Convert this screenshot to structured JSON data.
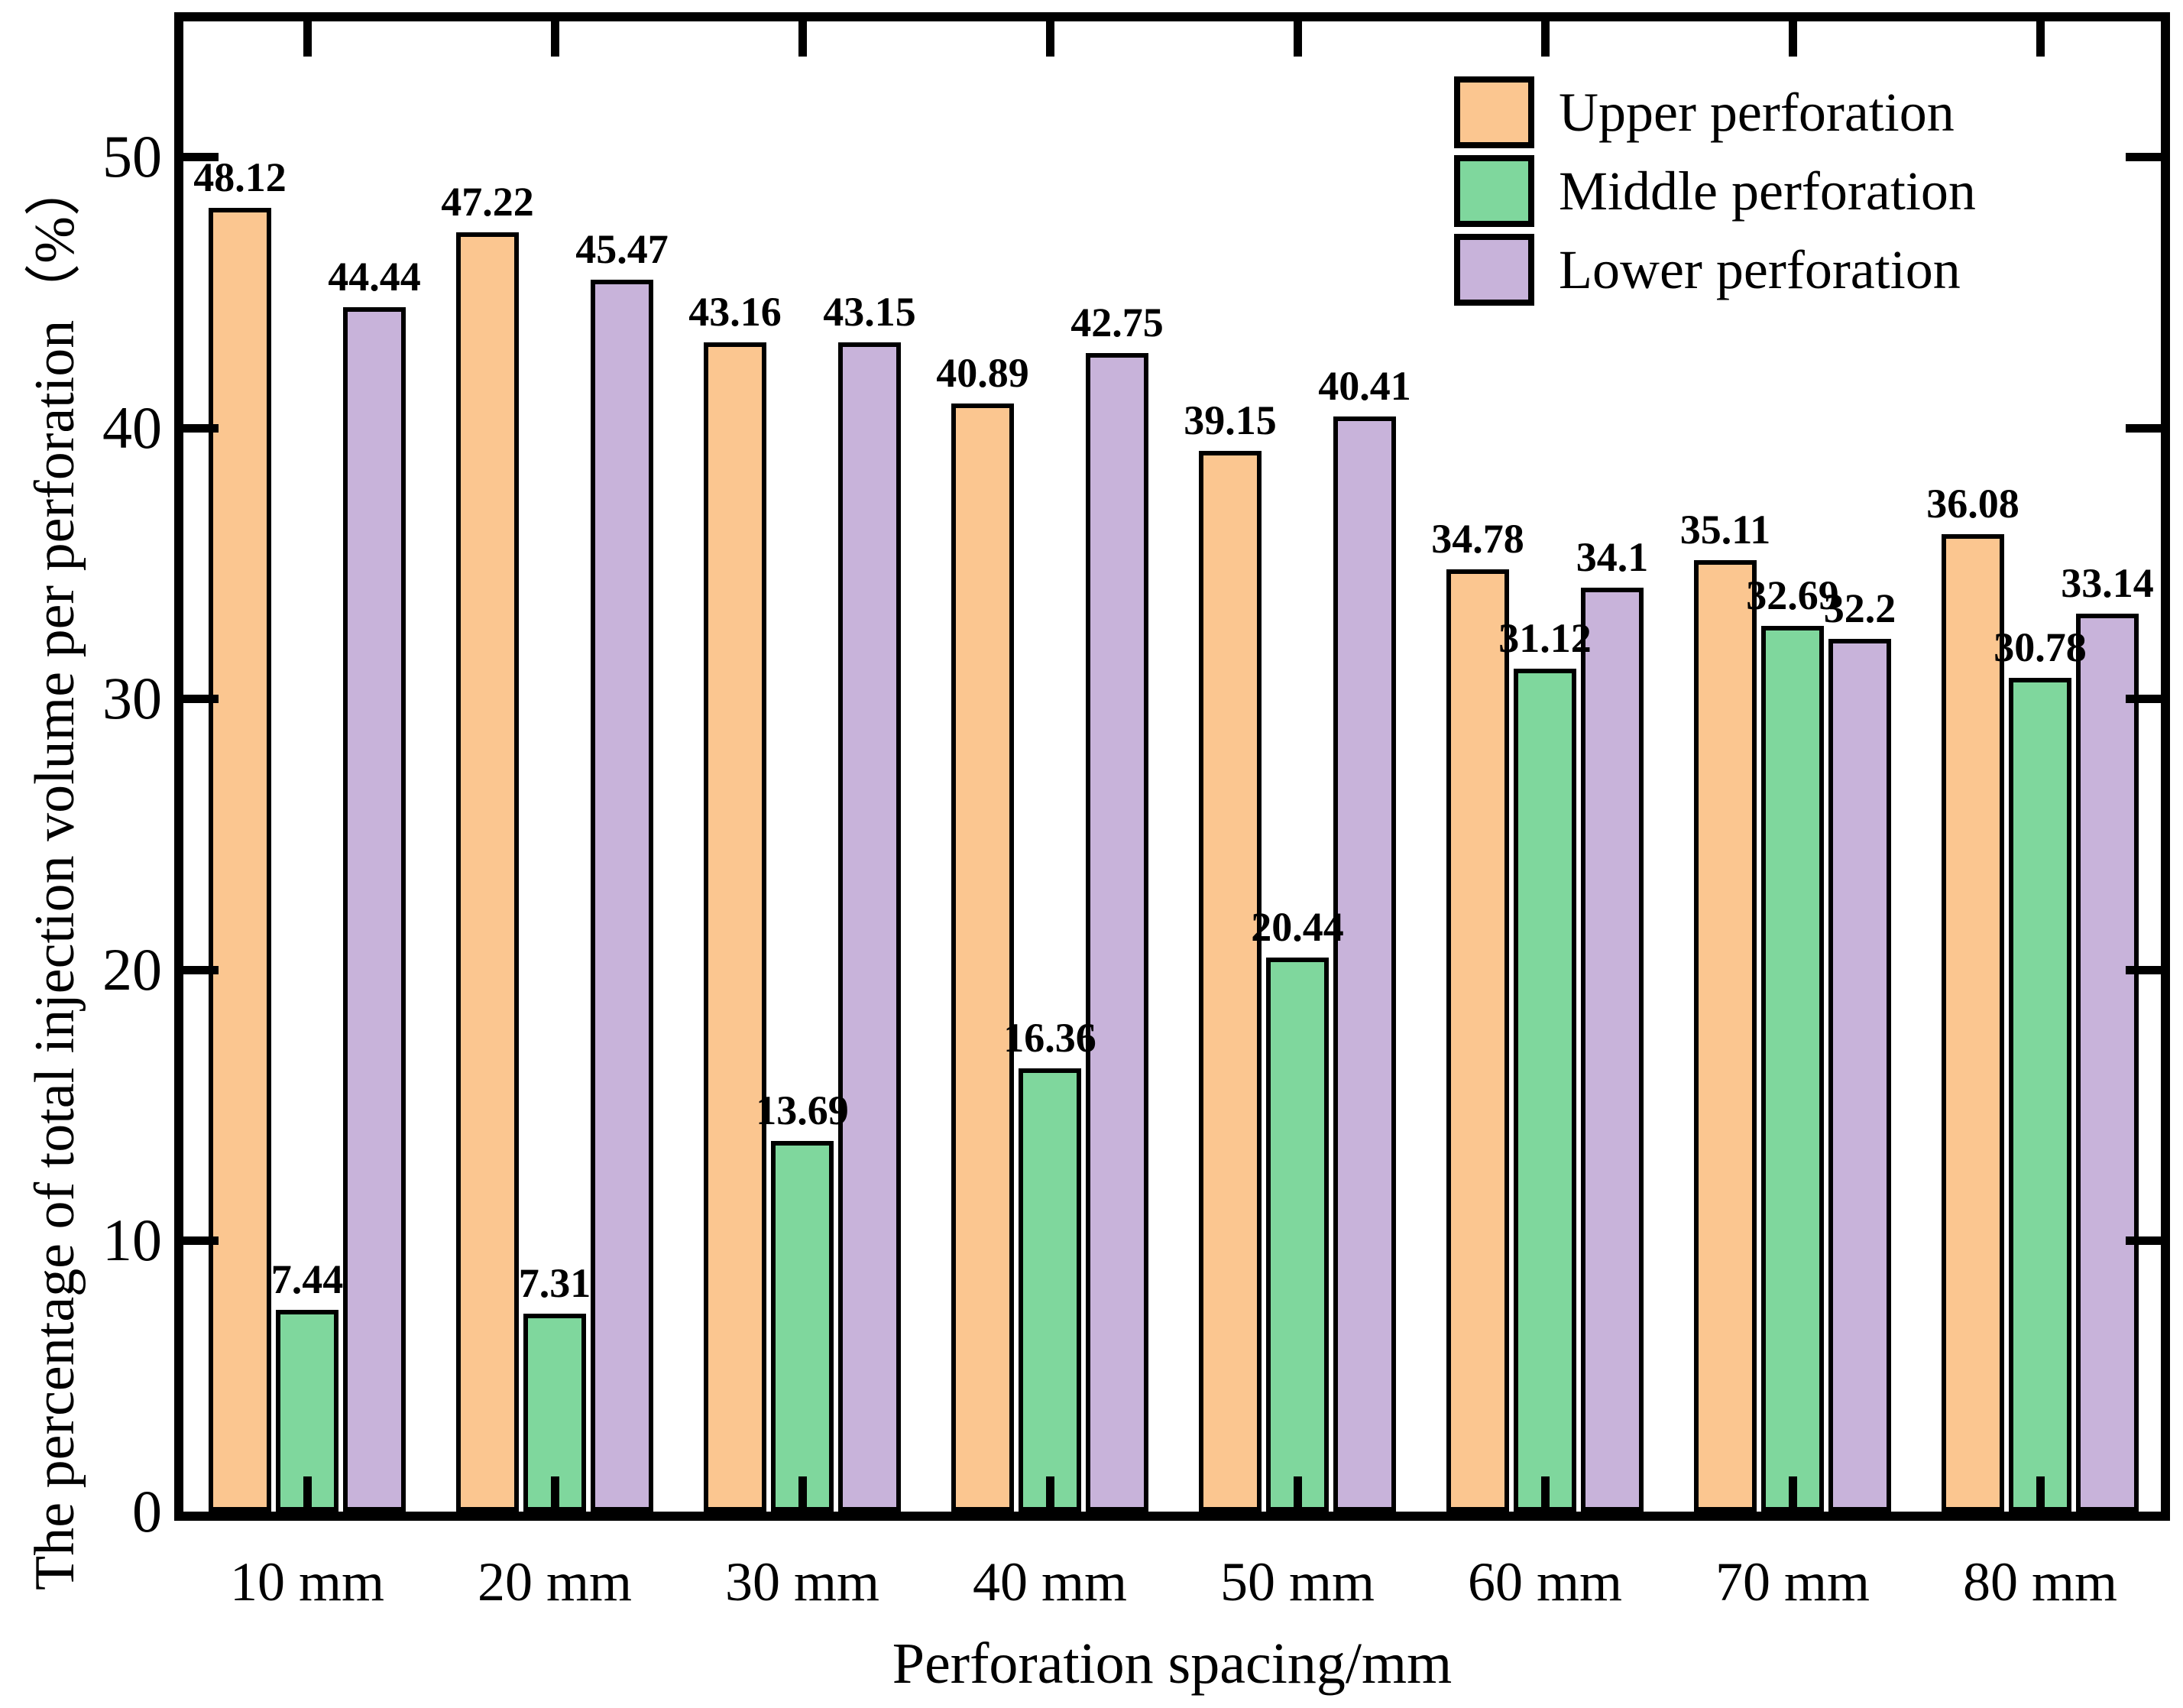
{
  "chart_data": {
    "type": "bar",
    "title": "",
    "categories": [
      "10 mm",
      "20 mm",
      "30 mm",
      "40 mm",
      "50 mm",
      "60 mm",
      "70 mm",
      "80 mm"
    ],
    "series": [
      {
        "name": "Upper perforation",
        "color": "#FBC690",
        "values": [
          48.12,
          47.22,
          43.16,
          40.89,
          39.15,
          34.78,
          35.11,
          36.08
        ]
      },
      {
        "name": "Middle perforation",
        "color": "#7FD79D",
        "values": [
          7.44,
          7.31,
          13.69,
          16.36,
          20.44,
          31.12,
          32.69,
          30.78
        ]
      },
      {
        "name": "Lower perforation",
        "color": "#C8B3DA",
        "values": [
          44.44,
          45.47,
          43.15,
          42.75,
          40.41,
          34.1,
          32.2,
          33.14
        ]
      }
    ],
    "xlabel": "Perforation spacing/mm",
    "ylabel": "The percentage of total injection volume per perforation（%）",
    "ylim": [
      0,
      55
    ],
    "yticks": [
      0,
      10,
      20,
      30,
      40,
      50
    ],
    "bar_edge_color": "#000000",
    "legend_position": "top-right",
    "grid": false,
    "value_labels_shown": true
  }
}
